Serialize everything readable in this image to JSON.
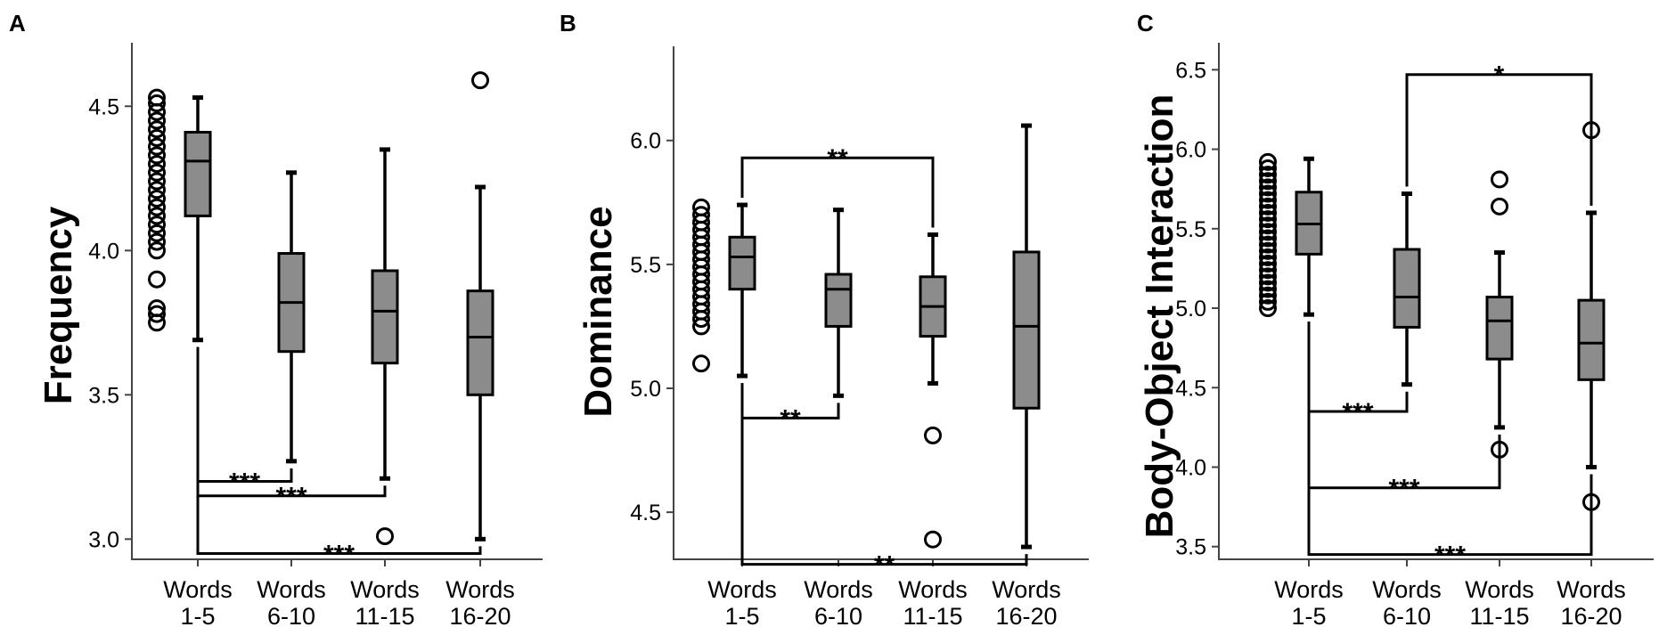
{
  "chart_data": [
    {
      "panel": "A",
      "type": "box",
      "ylabel": "Frequency",
      "ylim": [
        2.93,
        4.72
      ],
      "yticks": [
        "3.0",
        "3.5",
        "4.0",
        "4.5"
      ],
      "categories": [
        [
          "Words",
          "1-5"
        ],
        [
          "Words",
          "6-10"
        ],
        [
          "Words",
          "11-15"
        ],
        [
          "Words",
          "16-20"
        ]
      ],
      "boxes": [
        {
          "min": 3.69,
          "q1": 4.12,
          "median": 4.31,
          "q3": 4.41,
          "max": 4.53,
          "outliers": [
            3.75,
            3.78,
            3.8,
            3.9,
            4.0,
            4.03,
            4.06,
            4.09,
            4.12,
            4.15,
            4.18,
            4.21,
            4.24,
            4.27,
            4.3,
            4.33,
            4.36,
            4.39,
            4.42,
            4.45,
            4.48,
            4.51,
            4.53
          ]
        },
        {
          "min": 3.27,
          "q1": 3.65,
          "median": 3.82,
          "q3": 3.99,
          "max": 4.27,
          "outliers": []
        },
        {
          "min": 3.21,
          "q1": 3.61,
          "median": 3.79,
          "q3": 3.93,
          "max": 4.35,
          "outliers": [
            3.01
          ]
        },
        {
          "min": 3.0,
          "q1": 3.5,
          "median": 3.7,
          "q3": 3.86,
          "max": 4.22,
          "outliers": [
            4.59
          ]
        }
      ],
      "significance": [
        {
          "from": 0,
          "to": 1,
          "label": "***",
          "y": 3.2
        },
        {
          "from": 0,
          "to": 2,
          "label": "***",
          "y": 3.15
        },
        {
          "from": 0,
          "to": 3,
          "label": "***",
          "y": 2.95
        }
      ]
    },
    {
      "panel": "B",
      "type": "box",
      "ylabel": "Dominance",
      "ylim": [
        4.31,
        6.38
      ],
      "yticks": [
        "4.5",
        "5.0",
        "5.5",
        "6.0"
      ],
      "categories": [
        [
          "Words",
          "1-5"
        ],
        [
          "Words",
          "6-10"
        ],
        [
          "Words",
          "11-15"
        ],
        [
          "Words",
          "16-20"
        ]
      ],
      "boxes": [
        {
          "min": 5.05,
          "q1": 5.4,
          "median": 5.53,
          "q3": 5.61,
          "max": 5.74,
          "outliers": [
            5.1,
            5.25,
            5.28,
            5.31,
            5.34,
            5.37,
            5.4,
            5.43,
            5.46,
            5.49,
            5.52,
            5.55,
            5.58,
            5.61,
            5.64,
            5.67,
            5.7,
            5.73
          ]
        },
        {
          "min": 4.97,
          "q1": 5.25,
          "median": 5.4,
          "q3": 5.46,
          "max": 5.72,
          "outliers": []
        },
        {
          "min": 5.02,
          "q1": 5.21,
          "median": 5.33,
          "q3": 5.45,
          "max": 5.62,
          "outliers": [
            4.81,
            4.39
          ]
        },
        {
          "min": 4.36,
          "q1": 4.92,
          "median": 5.25,
          "q3": 5.55,
          "max": 6.06,
          "outliers": []
        }
      ],
      "significance": [
        {
          "from": 0,
          "to": 2,
          "label": "**",
          "y": 5.93
        },
        {
          "from": 0,
          "to": 1,
          "label": "**",
          "y": 4.88
        },
        {
          "from": 0,
          "to": 3,
          "label": "**",
          "y": 4.29
        }
      ]
    },
    {
      "panel": "C",
      "type": "box",
      "ylabel": "Body-Object Interaction",
      "ylim": [
        3.42,
        6.67
      ],
      "yticks": [
        "3.5",
        "4.0",
        "4.5",
        "5.0",
        "5.5",
        "6.0",
        "6.5"
      ],
      "categories": [
        [
          "Words",
          "1-5"
        ],
        [
          "Words",
          "6-10"
        ],
        [
          "Words",
          "11-15"
        ],
        [
          "Words",
          "16-20"
        ]
      ],
      "boxes": [
        {
          "min": 4.96,
          "q1": 5.34,
          "median": 5.53,
          "q3": 5.73,
          "max": 5.94,
          "outliers": [
            5.0,
            5.04,
            5.08,
            5.12,
            5.16,
            5.2,
            5.24,
            5.28,
            5.32,
            5.36,
            5.4,
            5.44,
            5.48,
            5.52,
            5.56,
            5.6,
            5.64,
            5.68,
            5.72,
            5.76,
            5.8,
            5.84,
            5.88,
            5.92
          ]
        },
        {
          "min": 4.52,
          "q1": 4.88,
          "median": 5.07,
          "q3": 5.37,
          "max": 5.72,
          "outliers": []
        },
        {
          "min": 4.25,
          "q1": 4.68,
          "median": 4.92,
          "q3": 5.07,
          "max": 5.35,
          "outliers": [
            5.81,
            5.64,
            4.11
          ]
        },
        {
          "min": 4.0,
          "q1": 4.55,
          "median": 4.78,
          "q3": 5.05,
          "max": 5.6,
          "outliers": [
            6.12,
            3.78
          ]
        }
      ],
      "significance": [
        {
          "from": 1,
          "to": 3,
          "label": "*",
          "y": 6.47
        },
        {
          "from": 0,
          "to": 1,
          "label": "***",
          "y": 4.35
        },
        {
          "from": 0,
          "to": 2,
          "label": "***",
          "y": 3.87
        },
        {
          "from": 0,
          "to": 3,
          "label": "***",
          "y": 3.45
        }
      ]
    }
  ]
}
